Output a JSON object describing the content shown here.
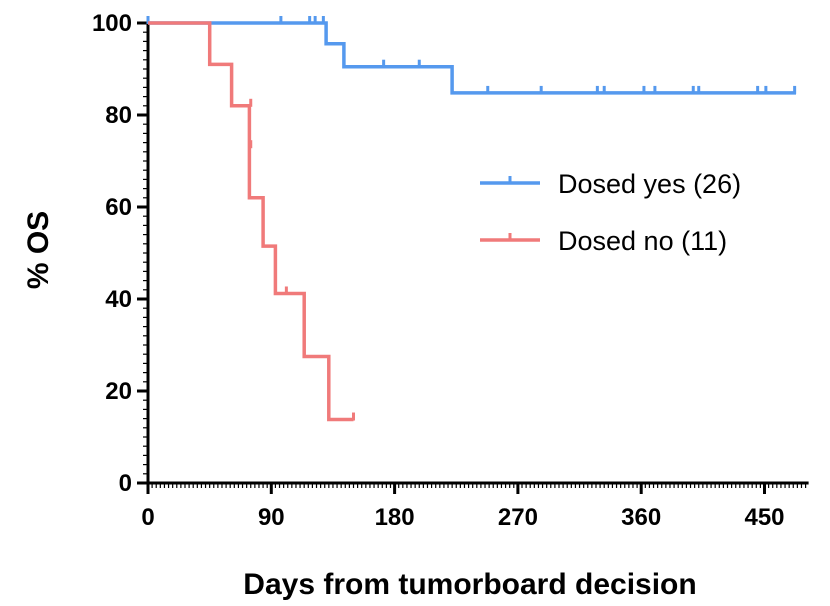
{
  "chart_data": {
    "type": "line",
    "subtype": "kaplan-meier step",
    "xlabel": "Days from tumorboard decision",
    "ylabel": "% OS",
    "xlim": [
      0,
      480
    ],
    "ylim": [
      0,
      100
    ],
    "x_ticks": [
      "0",
      "90",
      "180",
      "270",
      "360",
      "450"
    ],
    "y_ticks": [
      "0",
      "20",
      "40",
      "60",
      "80",
      "100"
    ],
    "legend_position": "right-middle",
    "series": [
      {
        "name": "Dosed yes (26)",
        "color": "#5599ee",
        "steps": [
          [
            0,
            100
          ],
          [
            130,
            100
          ],
          [
            130,
            95.5
          ],
          [
            143,
            95.5
          ],
          [
            143,
            90.5
          ],
          [
            222,
            90.5
          ],
          [
            222,
            84.8
          ],
          [
            473,
            84.8
          ]
        ],
        "censored": [
          [
            0,
            100
          ],
          [
            97,
            100
          ],
          [
            118,
            100
          ],
          [
            122,
            100
          ],
          [
            128,
            100
          ],
          [
            172,
            90.5
          ],
          [
            198,
            90.5
          ],
          [
            248,
            84.8
          ],
          [
            287,
            84.8
          ],
          [
            328,
            84.8
          ],
          [
            333,
            84.8
          ],
          [
            362,
            84.8
          ],
          [
            370,
            84.8
          ],
          [
            398,
            84.8
          ],
          [
            402,
            84.8
          ],
          [
            445,
            84.8
          ],
          [
            451,
            84.8
          ],
          [
            472,
            84.8
          ]
        ]
      },
      {
        "name": "Dosed no (11)",
        "color": "#f07a7a",
        "steps": [
          [
            0,
            100
          ],
          [
            45,
            100
          ],
          [
            45,
            91
          ],
          [
            61,
            91
          ],
          [
            61,
            82
          ],
          [
            74,
            82
          ],
          [
            74,
            62
          ],
          [
            84,
            62
          ],
          [
            84,
            51.5
          ],
          [
            93,
            51.5
          ],
          [
            93,
            41.2
          ],
          [
            114,
            41.2
          ],
          [
            114,
            27.5
          ],
          [
            132,
            27.5
          ],
          [
            132,
            13.8
          ],
          [
            150,
            13.8
          ]
        ],
        "censored": [
          [
            75,
            82
          ],
          [
            75,
            73
          ],
          [
            101,
            41.2
          ],
          [
            150,
            13.8
          ]
        ]
      }
    ]
  }
}
